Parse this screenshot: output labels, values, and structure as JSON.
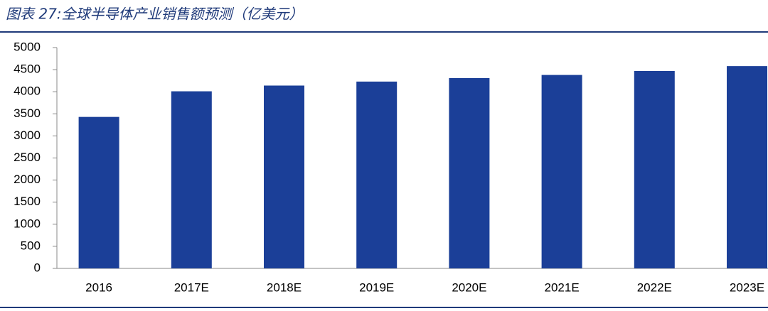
{
  "chart_data": {
    "type": "bar",
    "title": "图表 27:全球半导体产业销售额预测（亿美元）",
    "categories": [
      "2016",
      "2017E",
      "2018E",
      "2019E",
      "2020E",
      "2021E",
      "2022E",
      "2023E"
    ],
    "values": [
      3430,
      4010,
      4140,
      4230,
      4310,
      4380,
      4470,
      4580
    ],
    "color": "#1b3f98",
    "ylim": [
      0,
      5000
    ],
    "yticks": [
      0,
      500,
      1000,
      1500,
      2000,
      2500,
      3000,
      3500,
      4000,
      4500,
      5000
    ],
    "grid": false
  }
}
